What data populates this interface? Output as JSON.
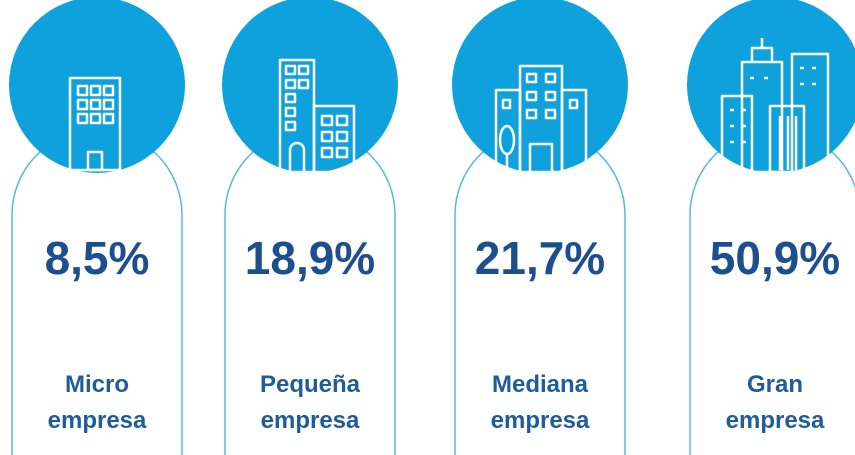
{
  "cards": [
    {
      "value": "8,5%",
      "label": [
        "Micro",
        "empresa"
      ]
    },
    {
      "value": "18,9%",
      "label": [
        "Pequeña",
        "empresa"
      ]
    },
    {
      "value": "21,7%",
      "label": [
        "Mediana",
        "empresa"
      ]
    },
    {
      "value": "50,9%",
      "label": [
        "Gran",
        "empresa"
      ]
    }
  ]
}
